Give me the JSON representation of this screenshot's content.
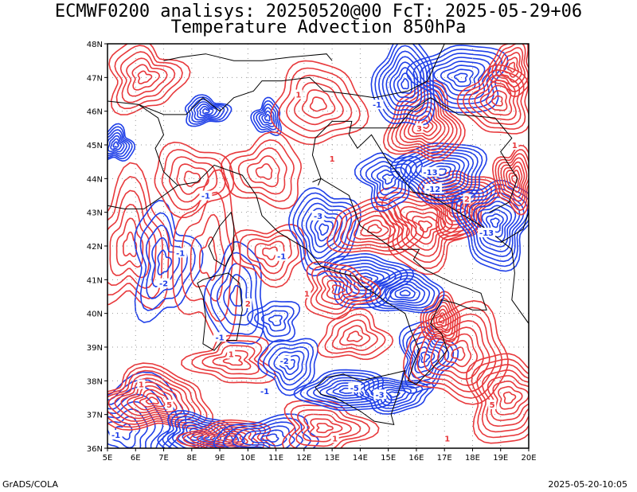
{
  "header": {
    "line1": "ECMWF0200 analisys: 20250520@00 FcT: 2025-05-29+06",
    "line2": "Temperature Advection 850hPa"
  },
  "footer": {
    "left": "GrADS/COLA",
    "right": "2025-05-20-10:05"
  },
  "map": {
    "projection": "latlon",
    "lon_range": [
      5,
      20
    ],
    "lat_range": [
      36,
      48
    ],
    "x_ticks": [
      "5E",
      "6E",
      "7E",
      "8E",
      "9E",
      "10E",
      "11E",
      "12E",
      "13E",
      "14E",
      "15E",
      "16E",
      "17E",
      "18E",
      "19E",
      "20E"
    ],
    "y_ticks": [
      "36N",
      "37N",
      "38N",
      "39N",
      "40N",
      "41N",
      "42N",
      "43N",
      "44N",
      "45N",
      "46N",
      "47N",
      "48N"
    ],
    "grid": "dotted",
    "colors": {
      "warm_advection": "#e8393c",
      "cold_advection": "#2040e8",
      "coastline": "#000000",
      "grid": "#999999"
    },
    "contour_labels": [
      {
        "text": "-1",
        "color": "cold",
        "lon": 7.6,
        "lat": 41.8
      },
      {
        "text": "-2",
        "color": "cold",
        "lon": 7.0,
        "lat": 40.9
      },
      {
        "text": "-1",
        "color": "cold",
        "lon": 8.5,
        "lat": 43.5
      },
      {
        "text": "-3",
        "color": "cold",
        "lon": 12.5,
        "lat": 42.9
      },
      {
        "text": "-1",
        "color": "cold",
        "lon": 11.2,
        "lat": 41.7
      },
      {
        "text": "-13",
        "color": "cold",
        "lon": 16.5,
        "lat": 44.2
      },
      {
        "text": "-12",
        "color": "cold",
        "lon": 16.6,
        "lat": 43.7
      },
      {
        "text": "-13",
        "color": "cold",
        "lon": 18.5,
        "lat": 42.4
      },
      {
        "text": "-5",
        "color": "cold",
        "lon": 13.8,
        "lat": 37.8
      },
      {
        "text": "-3",
        "color": "cold",
        "lon": 14.7,
        "lat": 37.6
      },
      {
        "text": "-1",
        "color": "cold",
        "lon": 14.6,
        "lat": 46.2
      },
      {
        "text": "-1",
        "color": "cold",
        "lon": 9.0,
        "lat": 39.3
      },
      {
        "text": "-1",
        "color": "cold",
        "lon": 5.3,
        "lat": 36.4
      },
      {
        "text": "-1",
        "color": "cold",
        "lon": 10.6,
        "lat": 37.7
      },
      {
        "text": "-2",
        "color": "cold",
        "lon": 11.3,
        "lat": 38.6
      },
      {
        "text": "1",
        "color": "warm",
        "lon": 6.2,
        "lat": 37.9
      },
      {
        "text": "5",
        "color": "warm",
        "lon": 7.2,
        "lat": 37.3
      },
      {
        "text": "1",
        "color": "warm",
        "lon": 13.1,
        "lat": 36.3
      },
      {
        "text": "2",
        "color": "warm",
        "lon": 10.0,
        "lat": 40.3
      },
      {
        "text": "1",
        "color": "warm",
        "lon": 12.1,
        "lat": 40.6
      },
      {
        "text": "1",
        "color": "warm",
        "lon": 17.1,
        "lat": 36.3
      },
      {
        "text": "5",
        "color": "warm",
        "lon": 18.7,
        "lat": 37.3
      },
      {
        "text": "3",
        "color": "warm",
        "lon": 16.1,
        "lat": 45.5
      },
      {
        "text": "2",
        "color": "warm",
        "lon": 17.8,
        "lat": 43.4
      },
      {
        "text": "1",
        "color": "warm",
        "lon": 19.5,
        "lat": 45.0
      },
      {
        "text": "1",
        "color": "warm",
        "lon": 9.4,
        "lat": 38.8
      },
      {
        "text": "1",
        "color": "warm",
        "lon": 11.8,
        "lat": 46.5
      },
      {
        "text": "1",
        "color": "warm",
        "lon": 13.0,
        "lat": 44.6
      }
    ]
  }
}
